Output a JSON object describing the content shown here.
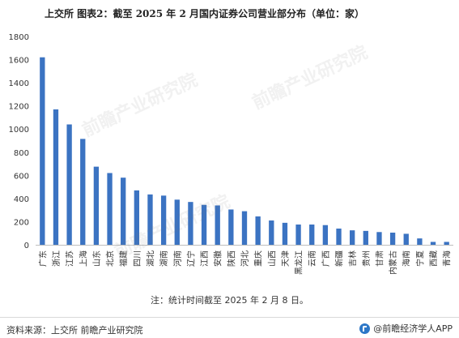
{
  "header": {
    "title": "上交所  图表2：截至 2025 年 2 月国内证券公司营业部分布（单位：家）"
  },
  "chart_data": {
    "type": "bar",
    "categories": [
      "广东",
      "浙江",
      "江苏",
      "上海",
      "山东",
      "北京",
      "福建",
      "四川",
      "湖北",
      "湖南",
      "河南",
      "辽宁",
      "江西",
      "安徽",
      "陕西",
      "河北",
      "重庆",
      "山西",
      "天津",
      "黑龙江",
      "云南",
      "广西",
      "新疆",
      "吉林",
      "贵州",
      "甘肃",
      "内蒙古",
      "海南",
      "宁夏",
      "西藏",
      "青海"
    ],
    "values": [
      1620,
      1170,
      1040,
      915,
      675,
      620,
      580,
      470,
      435,
      425,
      390,
      370,
      345,
      340,
      305,
      290,
      245,
      210,
      190,
      175,
      175,
      170,
      140,
      125,
      120,
      110,
      105,
      95,
      55,
      25,
      25
    ],
    "ylim": [
      0,
      1800
    ],
    "yticks": [
      0,
      200,
      400,
      600,
      800,
      1000,
      1200,
      1400,
      1600,
      1800
    ],
    "grid": false,
    "bar_color": "#3b73c2"
  },
  "note": "注：统计时间截至 2025 年 2 月 8 日。",
  "footer": {
    "source": "资料来源：上交所 前瞻产业研究院",
    "brand": "@前瞻经济学人APP"
  },
  "watermark": "前瞻产业研究院"
}
